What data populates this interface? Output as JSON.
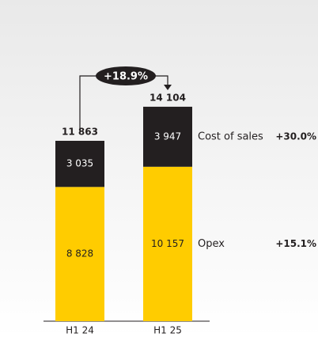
{
  "chart_data": {
    "type": "stacked_bar",
    "categories": [
      "H1 24",
      "H1 25"
    ],
    "series": [
      {
        "name": "Opex",
        "color": "#ffcc00",
        "values": [
          8828,
          10157
        ],
        "value_labels": [
          "8 828",
          "10 157"
        ],
        "change": "+15.1%"
      },
      {
        "name": "Cost of sales",
        "color": "#231f20",
        "values": [
          3035,
          3947
        ],
        "value_labels": [
          "3 035",
          "3 947"
        ],
        "change": "+30.0%"
      }
    ],
    "totals": [
      11863,
      14104
    ],
    "total_labels": [
      "11 863",
      "14 104"
    ],
    "annotation": "+18.9%"
  }
}
